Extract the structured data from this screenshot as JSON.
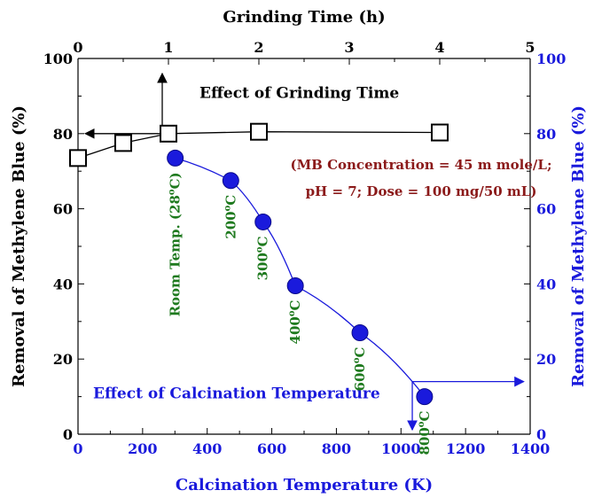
{
  "chart_data": {
    "type": "scatter",
    "title": "",
    "colors": {
      "primary_axis": "#000000",
      "secondary_axis": "#1a1adc",
      "annotation_green": "#1f7a1f",
      "annotation_red": "#8b1a1a"
    },
    "axes": {
      "top_x": {
        "label": "Grinding Time (h)",
        "range": [
          0,
          5
        ],
        "ticks": [
          "0",
          "1",
          "2",
          "3",
          "4",
          "5"
        ]
      },
      "bottom_x": {
        "label": "Calcination Temperature (K)",
        "range": [
          0,
          1400
        ],
        "ticks": [
          "0",
          "200",
          "400",
          "600",
          "800",
          "1000",
          "1200",
          "1400"
        ]
      },
      "left_y": {
        "label": "Removal of Methylene Blue (%)",
        "range": [
          0,
          100
        ],
        "ticks": [
          "0",
          "20",
          "40",
          "60",
          "80",
          "100"
        ]
      },
      "right_y": {
        "label": "Removal of Methylene Blue (%)",
        "range": [
          0,
          100
        ],
        "ticks": [
          "0",
          "20",
          "40",
          "60",
          "80",
          "100"
        ]
      }
    },
    "series": [
      {
        "name": "Effect of Grinding Time",
        "axis_x": "top_x",
        "marker": "open-square",
        "points": [
          {
            "x": 0,
            "y": 73.5
          },
          {
            "x": 0.5,
            "y": 77.5
          },
          {
            "x": 1,
            "y": 80
          },
          {
            "x": 2,
            "y": 80.5
          },
          {
            "x": 4,
            "y": 80.3
          }
        ]
      },
      {
        "name": "Effect of Calcination Temperature",
        "axis_x": "bottom_x",
        "marker": "filled-circle",
        "points": [
          {
            "x": 301,
            "y": 73.5
          },
          {
            "x": 473,
            "y": 67.5
          },
          {
            "x": 573,
            "y": 56.5
          },
          {
            "x": 673,
            "y": 39.5
          },
          {
            "x": 873,
            "y": 27
          },
          {
            "x": 1073,
            "y": 10
          }
        ]
      }
    ],
    "annotations": {
      "conditions": [
        "(MB Concentration = 45 m mole/L;",
        "pH = 7; Dose = 100 mg/50 mL)"
      ],
      "temperature_labels": [
        {
          "base": "Room Temp. (28",
          "sup": "o",
          "tail": "C)",
          "x": 301,
          "y": 73.5
        },
        {
          "base": "200",
          "sup": "o",
          "tail": "C",
          "x": 473,
          "y": 67.5
        },
        {
          "base": "300",
          "sup": "o",
          "tail": "C",
          "x": 573,
          "y": 56.5
        },
        {
          "base": "400",
          "sup": "o",
          "tail": "C",
          "x": 673,
          "y": 39.5
        },
        {
          "base": "600",
          "sup": "o",
          "tail": "C",
          "x": 873,
          "y": 27
        },
        {
          "base": "800",
          "sup": "o",
          "tail": "C",
          "x": 1073,
          "y": 10
        }
      ]
    }
  }
}
